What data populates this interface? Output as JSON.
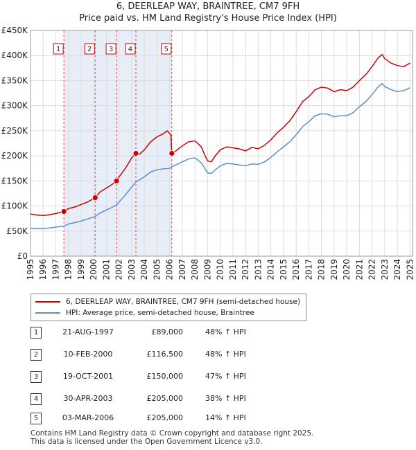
{
  "title_line1": "6, DEERLEAP WAY, BRAINTREE, CM7 9FH",
  "title_line2": "Price paid vs. HM Land Registry's House Price Index (HPI)",
  "chart_data": {
    "type": "line",
    "title": "Price paid vs. HM Land Registry's House Price Index (HPI)",
    "xlabel": "",
    "ylabel": "",
    "xlim": [
      1995,
      2025.2
    ],
    "ylim": [
      0,
      450000
    ],
    "y_ticks": [
      0,
      50000,
      100000,
      150000,
      200000,
      250000,
      300000,
      350000,
      400000,
      450000
    ],
    "y_tick_labels": [
      "£0",
      "£50K",
      "£100K",
      "£150K",
      "£200K",
      "£250K",
      "£300K",
      "£350K",
      "£400K",
      "£450K"
    ],
    "x_ticks": [
      1995,
      1996,
      1997,
      1998,
      1999,
      2000,
      2001,
      2002,
      2003,
      2004,
      2005,
      2006,
      2007,
      2008,
      2009,
      2010,
      2011,
      2012,
      2013,
      2014,
      2015,
      2016,
      2017,
      2018,
      2019,
      2020,
      2021,
      2022,
      2023,
      2024,
      2025
    ],
    "colors": {
      "price": "#cc0000",
      "hpi": "#5b8fc8",
      "shade": "#e8eef8"
    },
    "series": [
      {
        "name": "6, DEERLEAP WAY, BRAINTREE, CM7 9FH (semi-detached house)",
        "color": "#cc0000",
        "points": [
          [
            1995,
            84000
          ],
          [
            1995.5,
            82000
          ],
          [
            1996,
            81000
          ],
          [
            1996.5,
            82500
          ],
          [
            1997,
            85000
          ],
          [
            1997.64,
            89000
          ],
          [
            1998,
            95000
          ],
          [
            1998.5,
            98000
          ],
          [
            1999,
            103000
          ],
          [
            1999.5,
            108000
          ],
          [
            2000.11,
            116500
          ],
          [
            2000.5,
            128000
          ],
          [
            2001,
            136000
          ],
          [
            2001.5,
            144000
          ],
          [
            2001.8,
            150000
          ],
          [
            2002,
            158000
          ],
          [
            2002.5,
            175000
          ],
          [
            2003,
            196000
          ],
          [
            2003.33,
            205000
          ],
          [
            2003.6,
            203000
          ],
          [
            2004,
            212000
          ],
          [
            2004.5,
            228000
          ],
          [
            2005,
            238000
          ],
          [
            2005.5,
            244000
          ],
          [
            2005.8,
            250000
          ],
          [
            2006.1,
            242000
          ],
          [
            2006.17,
            205000
          ],
          [
            2006.4,
            208000
          ],
          [
            2007,
            220000
          ],
          [
            2007.5,
            228000
          ],
          [
            2008,
            230000
          ],
          [
            2008.5,
            218000
          ],
          [
            2008.8,
            200000
          ],
          [
            2009,
            190000
          ],
          [
            2009.3,
            188000
          ],
          [
            2009.6,
            200000
          ],
          [
            2010,
            212000
          ],
          [
            2010.5,
            218000
          ],
          [
            2011,
            216000
          ],
          [
            2011.5,
            214000
          ],
          [
            2012,
            210000
          ],
          [
            2012.5,
            217000
          ],
          [
            2013,
            214000
          ],
          [
            2013.5,
            221000
          ],
          [
            2014,
            232000
          ],
          [
            2014.5,
            246000
          ],
          [
            2015,
            257000
          ],
          [
            2015.5,
            270000
          ],
          [
            2016,
            288000
          ],
          [
            2016.5,
            308000
          ],
          [
            2017,
            318000
          ],
          [
            2017.5,
            332000
          ],
          [
            2018,
            337000
          ],
          [
            2018.5,
            335000
          ],
          [
            2019,
            328000
          ],
          [
            2019.5,
            332000
          ],
          [
            2020,
            330000
          ],
          [
            2020.5,
            337000
          ],
          [
            2021,
            350000
          ],
          [
            2021.5,
            362000
          ],
          [
            2022,
            378000
          ],
          [
            2022.5,
            396000
          ],
          [
            2022.8,
            402000
          ],
          [
            2023,
            394000
          ],
          [
            2023.5,
            385000
          ],
          [
            2024,
            380000
          ],
          [
            2024.5,
            378000
          ],
          [
            2025,
            385000
          ]
        ]
      },
      {
        "name": "HPI: Average price, semi-detached house, Braintree",
        "color": "#5b8fc8",
        "points": [
          [
            1995,
            56000
          ],
          [
            1995.5,
            55000
          ],
          [
            1996,
            55000
          ],
          [
            1996.5,
            56000
          ],
          [
            1997,
            58000
          ],
          [
            1997.64,
            60000
          ],
          [
            1998,
            64000
          ],
          [
            1998.5,
            67000
          ],
          [
            1999,
            70000
          ],
          [
            1999.5,
            74000
          ],
          [
            2000.11,
            79000
          ],
          [
            2000.5,
            86000
          ],
          [
            2001,
            92000
          ],
          [
            2001.5,
            98000
          ],
          [
            2001.8,
            102000
          ],
          [
            2002,
            108000
          ],
          [
            2002.5,
            122000
          ],
          [
            2003,
            138000
          ],
          [
            2003.33,
            148000
          ],
          [
            2004,
            158000
          ],
          [
            2004.5,
            168000
          ],
          [
            2005,
            172000
          ],
          [
            2005.5,
            174000
          ],
          [
            2006,
            175000
          ],
          [
            2006.17,
            178000
          ],
          [
            2006.5,
            182000
          ],
          [
            2007,
            188000
          ],
          [
            2007.5,
            194000
          ],
          [
            2008,
            196000
          ],
          [
            2008.5,
            186000
          ],
          [
            2008.8,
            174000
          ],
          [
            2009,
            166000
          ],
          [
            2009.3,
            165000
          ],
          [
            2009.6,
            172000
          ],
          [
            2010,
            180000
          ],
          [
            2010.5,
            185000
          ],
          [
            2011,
            184000
          ],
          [
            2011.5,
            182000
          ],
          [
            2012,
            180000
          ],
          [
            2012.5,
            184000
          ],
          [
            2013,
            183000
          ],
          [
            2013.5,
            188000
          ],
          [
            2014,
            197000
          ],
          [
            2014.5,
            208000
          ],
          [
            2015,
            218000
          ],
          [
            2015.5,
            228000
          ],
          [
            2016,
            242000
          ],
          [
            2016.5,
            258000
          ],
          [
            2017,
            268000
          ],
          [
            2017.5,
            280000
          ],
          [
            2018,
            284000
          ],
          [
            2018.5,
            283000
          ],
          [
            2019,
            278000
          ],
          [
            2019.5,
            280000
          ],
          [
            2020,
            280000
          ],
          [
            2020.5,
            286000
          ],
          [
            2021,
            298000
          ],
          [
            2021.5,
            308000
          ],
          [
            2022,
            322000
          ],
          [
            2022.5,
            338000
          ],
          [
            2022.8,
            344000
          ],
          [
            2023,
            338000
          ],
          [
            2023.5,
            332000
          ],
          [
            2024,
            328000
          ],
          [
            2024.5,
            330000
          ],
          [
            2025,
            336000
          ]
        ]
      }
    ],
    "sale_markers": [
      {
        "label": "1",
        "x": 1997.64,
        "y": 89000
      },
      {
        "label": "2",
        "x": 2000.11,
        "y": 116500
      },
      {
        "label": "3",
        "x": 2001.8,
        "y": 150000
      },
      {
        "label": "4",
        "x": 2003.33,
        "y": 205000
      },
      {
        "label": "5",
        "x": 2006.17,
        "y": 205000
      }
    ]
  },
  "legend": {
    "price_label": "6, DEERLEAP WAY, BRAINTREE, CM7 9FH (semi-detached house)",
    "hpi_label": "HPI: Average price, semi-detached house, Braintree"
  },
  "sales": [
    {
      "num": "1",
      "date": "21-AUG-1997",
      "price": "£89,000",
      "hpi": "48% ↑ HPI"
    },
    {
      "num": "2",
      "date": "10-FEB-2000",
      "price": "£116,500",
      "hpi": "48% ↑ HPI"
    },
    {
      "num": "3",
      "date": "19-OCT-2001",
      "price": "£150,000",
      "hpi": "47% ↑ HPI"
    },
    {
      "num": "4",
      "date": "30-APR-2003",
      "price": "£205,000",
      "hpi": "38% ↑ HPI"
    },
    {
      "num": "5",
      "date": "03-MAR-2006",
      "price": "£205,000",
      "hpi": "14% ↑ HPI"
    }
  ],
  "footer_line1": "Contains HM Land Registry data © Crown copyright and database right 2025.",
  "footer_line2": "This data is licensed under the Open Government Licence v3.0."
}
